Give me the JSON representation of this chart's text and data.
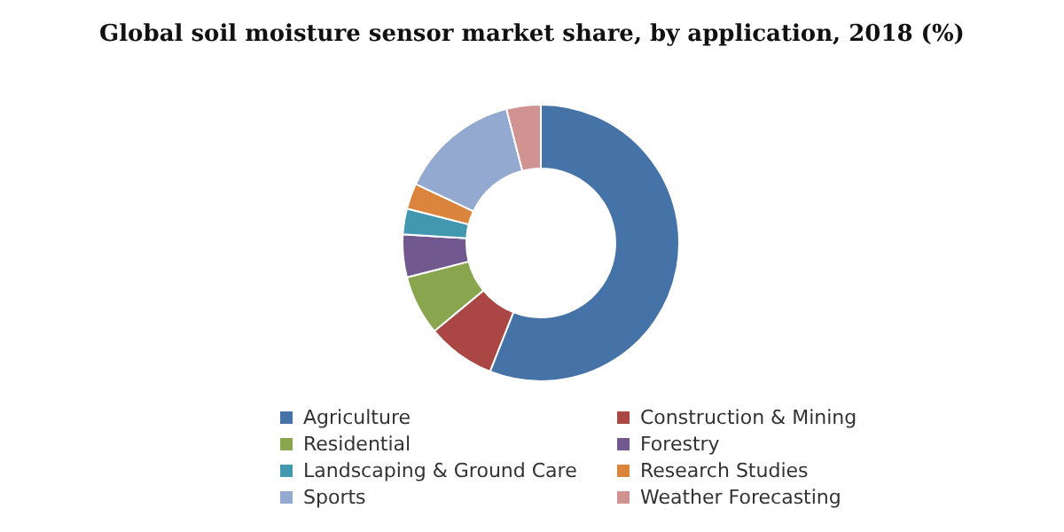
{
  "chart_data": {
    "type": "donut",
    "title": "Global soil moisture sensor market share, by application, 2018 (%)",
    "categories": [
      "Agriculture",
      "Construction & Mining",
      "Residential",
      "Forestry",
      "Landscaping & Ground Care",
      "Research Studies",
      "Sports",
      "Weather Forecasting"
    ],
    "values": [
      56,
      8,
      7,
      5,
      3,
      3,
      14,
      4
    ],
    "colors": [
      "#4572a7",
      "#aa4643",
      "#89a54e",
      "#71588f",
      "#4198af",
      "#db843d",
      "#93a9cf",
      "#d19392"
    ],
    "legend": "bottom"
  }
}
